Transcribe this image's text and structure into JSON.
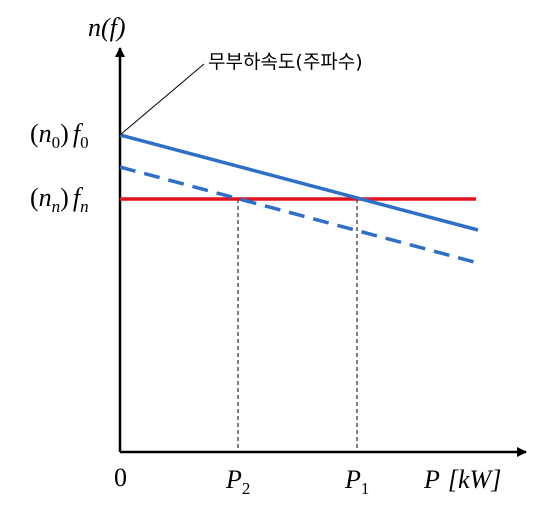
{
  "y_axis_label": {
    "base": "n",
    "paren": "(f)"
  },
  "annotation": "무부하속도(주파수)",
  "no_load_label": {
    "open": "(",
    "n": "n",
    "n_sub": "0",
    "close": ")",
    "f": "f",
    "f_sub": "0"
  },
  "rated_label": {
    "open": "(",
    "n": "n",
    "n_sub": "n",
    "close": ")",
    "f": "f",
    "f_sub": "n"
  },
  "origin_label": "0",
  "p2_label": {
    "base": "P",
    "sub": "2"
  },
  "p1_label": {
    "base": "P",
    "sub": "1"
  },
  "x_axis_label": {
    "base": "P",
    "unit": "[kW]"
  }
}
